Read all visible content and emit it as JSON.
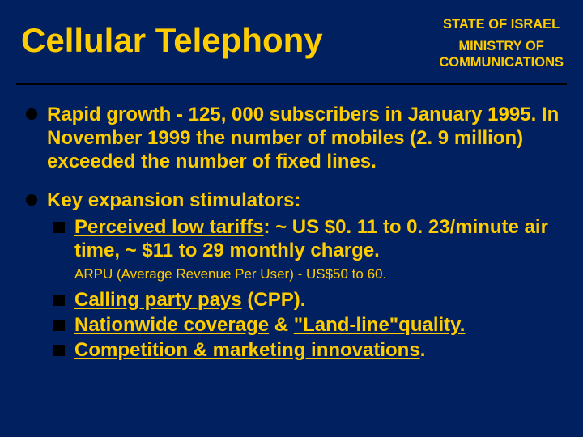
{
  "colors": {
    "background": "#002060",
    "text": "#ffcc00",
    "bullet": "#000000",
    "divider": "#000000"
  },
  "header": {
    "title": "Cellular Telephony",
    "org_line1": "STATE OF ISRAEL",
    "org_line2": "MINISTRY OF",
    "org_line3": "COMMUNICATIONS"
  },
  "body": {
    "b1": "Rapid growth - 125, 000 subscribers in January 1995. In November 1999 the number of mobiles (2. 9 million) exceeded the number of fixed lines.",
    "b2_intro": "Key expansion stimulators:",
    "sub1_u": "Perceived low tariffs",
    "sub1_rest": ": ~ US $0. 11 to 0. 23/minute air time, ~ $11 to 29 monthly charge.",
    "sub1_note": "ARPU (Average Revenue Per User) - US$50 to 60.",
    "sub2_u": "Calling party pays",
    "sub2_rest": " (CPP).",
    "sub3_u1": "Nationwide coverage",
    "sub3_mid": " & ",
    "sub3_u2": "\"Land-line\"quality.",
    "sub4_u": "Competition & marketing innovations",
    "sub4_rest": "."
  }
}
